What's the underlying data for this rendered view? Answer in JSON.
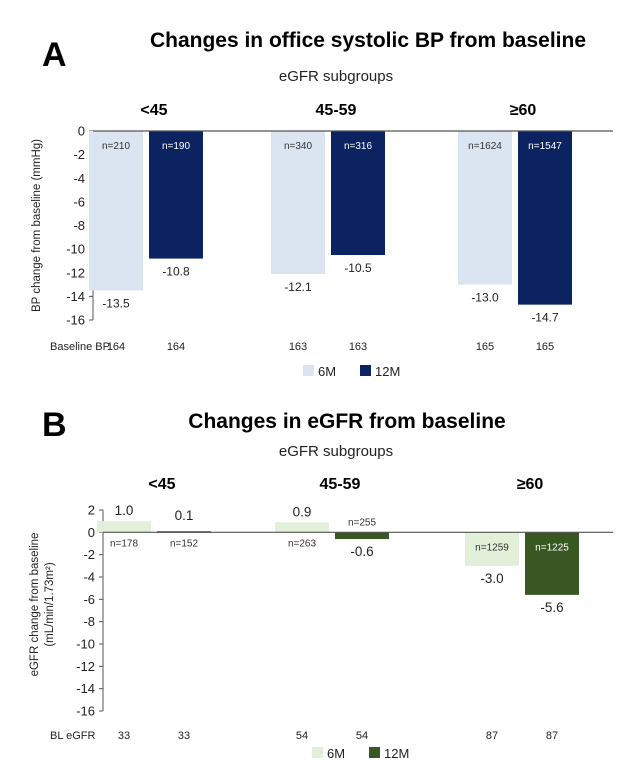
{
  "chart_data": [
    {
      "type": "bar",
      "panel": "A",
      "title": "Changes in office systolic BP from baseline",
      "subtitle": "eGFR subgroups",
      "categories": [
        "<45",
        "45-59",
        "≥60"
      ],
      "ylabel": "BP change from baseline (mmHg)",
      "xlabel": "",
      "ylim": [
        -16,
        0
      ],
      "yticks": [
        0,
        -2,
        -4,
        -6,
        -8,
        -10,
        -12,
        -14,
        -16
      ],
      "grid": false,
      "legend_position": "bottom-center",
      "series": [
        {
          "name": "6M",
          "color": "#dae5f1",
          "n_color": "#333333",
          "values": [
            -13.5,
            -12.1,
            -13.0
          ],
          "value_labels": [
            "-13.5",
            "-12.1",
            "-13.0"
          ],
          "n": [
            "n=210",
            "n=340",
            "n=1624"
          ],
          "baseline": [
            "164",
            "163",
            "165"
          ]
        },
        {
          "name": "12M",
          "color": "#0b2461",
          "n_color": "#ffffff",
          "values": [
            -10.8,
            -10.5,
            -14.7
          ],
          "value_labels": [
            "-10.8",
            "-10.5",
            "-14.7"
          ],
          "n": [
            "n=190",
            "n=316",
            "n=1547"
          ],
          "baseline": [
            "164",
            "163",
            "165"
          ]
        }
      ],
      "baseline_row_label": "Baseline BP"
    },
    {
      "type": "bar",
      "panel": "B",
      "title": "Changes in eGFR from baseline",
      "subtitle": "eGFR subgroups",
      "categories": [
        "<45",
        "45-59",
        "≥60"
      ],
      "ylabel": [
        "eGFR change from baseline",
        "(mL/min/1.73m²)"
      ],
      "xlabel": "",
      "ylim": [
        -16,
        2
      ],
      "yticks": [
        2,
        0,
        -2,
        -4,
        -6,
        -8,
        -10,
        -12,
        -14,
        -16
      ],
      "grid": false,
      "legend_position": "bottom-center",
      "series": [
        {
          "name": "6M",
          "color": "#e2efd9",
          "n_color": "#333333",
          "values": [
            1.0,
            0.9,
            -3.0
          ],
          "value_labels": [
            "1.0",
            "0.9",
            "-3.0"
          ],
          "n": [
            "n=178",
            "n=263",
            "n=1259"
          ],
          "baseline": [
            "33",
            "54",
            "87"
          ]
        },
        {
          "name": "12M",
          "color": "#385723",
          "n_color": "#ffffff",
          "values": [
            0.1,
            -0.6,
            -5.6
          ],
          "value_labels": [
            "0.1",
            "-0.6",
            "-5.6"
          ],
          "n": [
            "n=152",
            "n=255",
            "n=1225"
          ],
          "baseline": [
            "33",
            "54",
            "87"
          ]
        }
      ],
      "baseline_row_label": "BL eGFR"
    }
  ]
}
